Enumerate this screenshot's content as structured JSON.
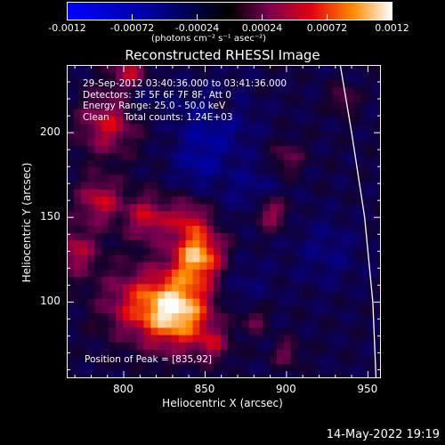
{
  "colorbar": {
    "tick_labels": [
      "-0.0012",
      "-0.00072",
      "-0.00024",
      "0.00024",
      "0.00072",
      "0.0012"
    ],
    "units": "(photons cm⁻² s⁻¹ asec⁻²)",
    "min": -0.0012,
    "max": 0.0012
  },
  "chart_data": {
    "type": "heatmap",
    "title": "Reconstructed RHESSI Image",
    "xlabel": "Heliocentric X (arcsec)",
    "ylabel": "Heliocentric Y (arcsec)",
    "xlim": [
      765,
      958
    ],
    "ylim": [
      55,
      240
    ],
    "x_ticks": [
      800,
      850,
      900,
      950
    ],
    "y_ticks": [
      100,
      150,
      200
    ],
    "info_lines": [
      "29-Sep-2012 03:40:36.000 to 03:41:36.000",
      "Detectors: 3F 5F 6F 7F 8F, Att 0",
      "Energy Range: 25.0 - 50.0 keV",
      "Clean     Total counts: 1.24E+03"
    ],
    "peak_label": "Position of Peak = [835,92]",
    "peak": [
      835,
      92
    ],
    "limb_curve": [
      [
        933,
        240
      ],
      [
        940,
        200
      ],
      [
        948,
        150
      ],
      [
        953,
        100
      ],
      [
        955,
        55
      ]
    ],
    "colors": {
      "negative": "#0000ff",
      "zero": "#000000",
      "positive_mid": "#ff2000",
      "positive_max": "#ffffff"
    }
  },
  "timestamp": "14-May-2022 19:19"
}
